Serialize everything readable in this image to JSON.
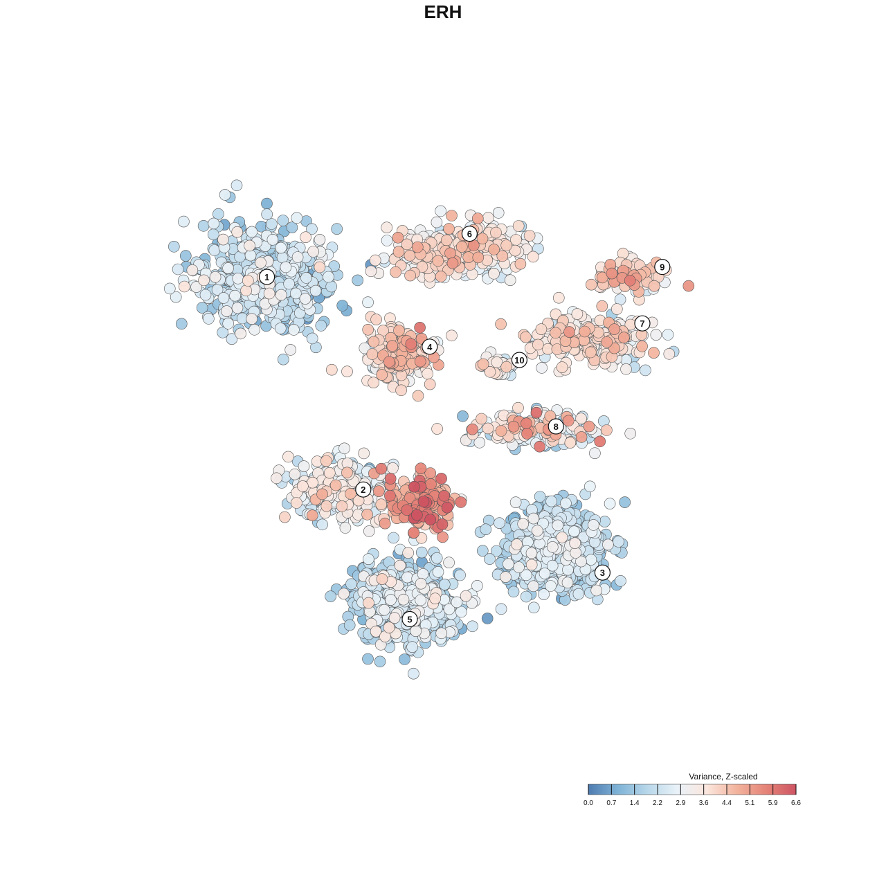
{
  "chart_data": {
    "type": "scatter",
    "title": "ERH",
    "xlabel": "",
    "ylabel": "",
    "grid": false,
    "legend": {
      "title": "Variance, Z-scaled",
      "placement": "bottom-right",
      "min": 0.0,
      "max": 6.6,
      "ticks": [
        "0.0",
        "0.7",
        "1.4",
        "2.2",
        "2.9",
        "3.6",
        "4.4",
        "5.1",
        "5.9",
        "6.6"
      ],
      "colors": [
        "#4e7bb0",
        "#7fb3d6",
        "#b8d7ea",
        "#e9f2f8",
        "#fbe6dd",
        "#f2b39d",
        "#e58378",
        "#cd5462"
      ]
    },
    "clusters": [
      {
        "label": "1",
        "x": -5.3,
        "y": 5.0,
        "spread_x": 2.3,
        "spread_y": 1.9,
        "n": 520,
        "mean": 2.0,
        "sd": 0.7
      },
      {
        "label": "6",
        "x": 0.4,
        "y": 5.8,
        "spread_x": 2.1,
        "spread_y": 0.9,
        "n": 360,
        "mean": 3.4,
        "sd": 0.7
      },
      {
        "label": "9",
        "x": 5.6,
        "y": 5.0,
        "spread_x": 1.2,
        "spread_y": 0.5,
        "n": 110,
        "mean": 3.8,
        "sd": 0.8
      },
      {
        "label": "4",
        "x": -1.3,
        "y": 2.6,
        "spread_x": 1.1,
        "spread_y": 1.0,
        "n": 230,
        "mean": 3.8,
        "sd": 0.7
      },
      {
        "label": "10",
        "x": 1.6,
        "y": 2.3,
        "spread_x": 0.6,
        "spread_y": 0.4,
        "n": 40,
        "mean": 3.0,
        "sd": 0.7
      },
      {
        "label": "7",
        "x": 4.3,
        "y": 3.1,
        "spread_x": 2.1,
        "spread_y": 0.8,
        "n": 250,
        "mean": 3.4,
        "sd": 0.8
      },
      {
        "label": "8",
        "x": 2.8,
        "y": 0.4,
        "spread_x": 2.0,
        "spread_y": 0.6,
        "n": 210,
        "mean": 3.0,
        "sd": 1.1
      },
      {
        "label": "2",
        "x": -3.1,
        "y": -1.4,
        "spread_x": 1.9,
        "spread_y": 1.0,
        "n": 260,
        "mean": 2.8,
        "sd": 0.8
      },
      {
        "label": "3",
        "x": 3.4,
        "y": -3.2,
        "spread_x": 1.8,
        "spread_y": 1.4,
        "n": 520,
        "mean": 2.0,
        "sd": 0.6
      },
      {
        "label": "5",
        "x": -1.2,
        "y": -4.8,
        "spread_x": 1.8,
        "spread_y": 1.4,
        "n": 460,
        "mean": 2.2,
        "sd": 0.7
      },
      {
        "label": "",
        "x": -0.6,
        "y": -1.8,
        "spread_x": 1.1,
        "spread_y": 0.8,
        "n": 200,
        "mean": 4.6,
        "sd": 1.0
      }
    ],
    "cluster_labels": [
      {
        "text": "1",
        "x": -5.3,
        "y": 5.0
      },
      {
        "text": "6",
        "x": 0.8,
        "y": 6.3
      },
      {
        "text": "9",
        "x": 6.6,
        "y": 5.3
      },
      {
        "text": "4",
        "x": -0.4,
        "y": 2.9
      },
      {
        "text": "10",
        "x": 2.3,
        "y": 2.5
      },
      {
        "text": "7",
        "x": 6.0,
        "y": 3.6
      },
      {
        "text": "8",
        "x": 3.4,
        "y": 0.5
      },
      {
        "text": "2",
        "x": -2.4,
        "y": -1.4
      },
      {
        "text": "3",
        "x": 4.8,
        "y": -3.9
      },
      {
        "text": "5",
        "x": -1.0,
        "y": -5.3
      }
    ],
    "xlim": [
      -10,
      10
    ],
    "ylim": [
      -10,
      10
    ]
  }
}
